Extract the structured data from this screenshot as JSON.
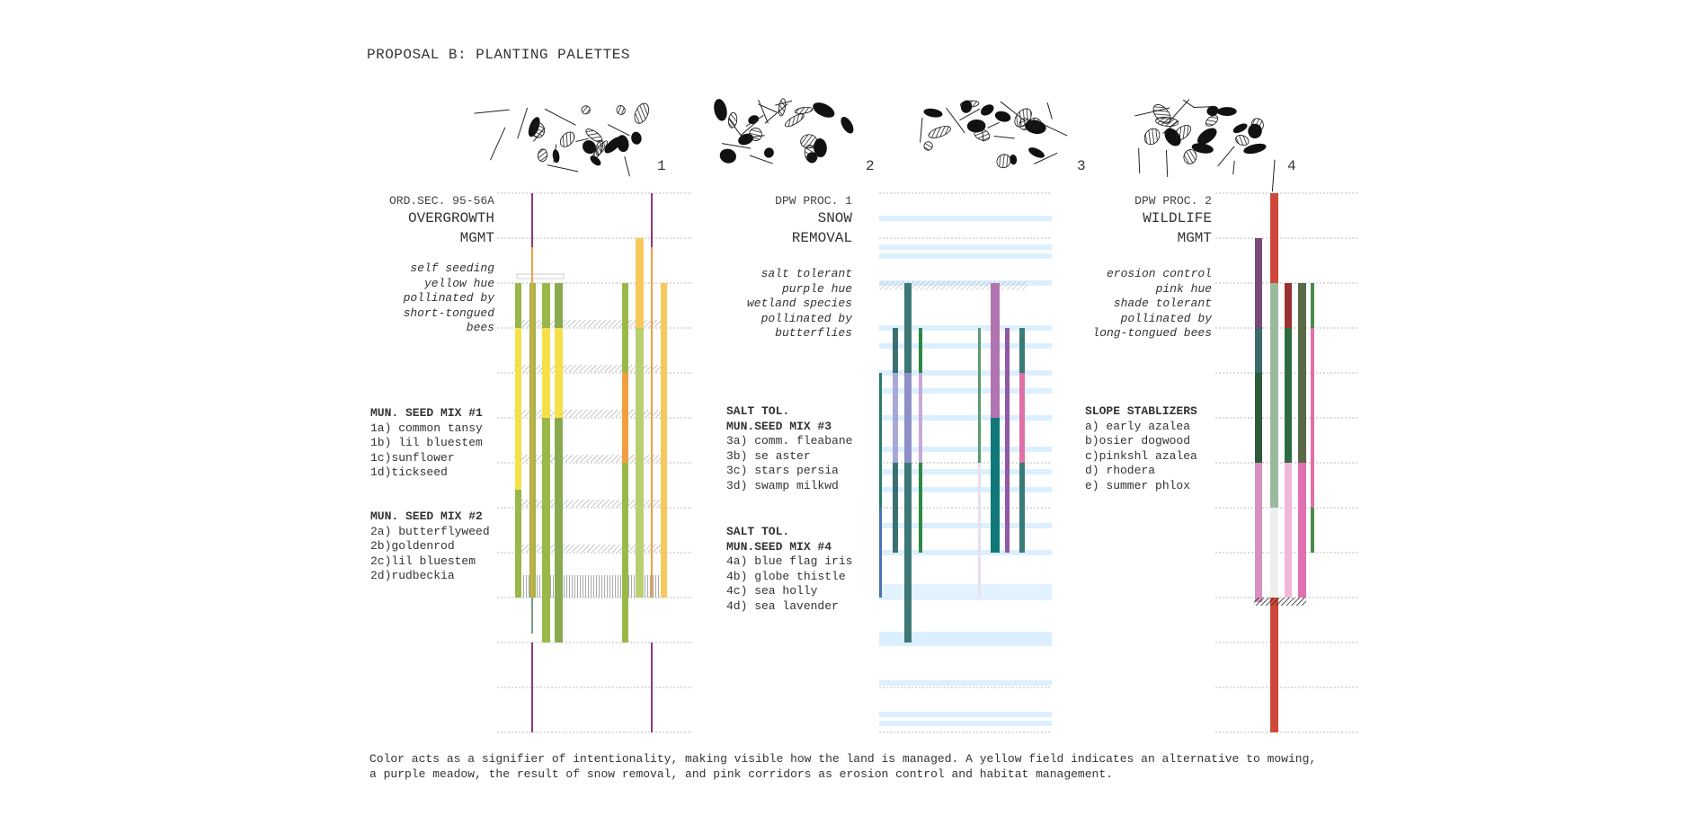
{
  "title": "PROPOSAL B: PLANTING PALETTES",
  "palette_numbers": [
    "1",
    "2",
    "3",
    "4"
  ],
  "sections": [
    {
      "code": "ORD.SEC. 95-56A",
      "name_lines": [
        "OVERGROWTH",
        "MGMT"
      ],
      "traits": [
        "self seeding",
        "yellow hue",
        "pollinated by",
        "short-tongued",
        "bees"
      ]
    },
    {
      "code": "DPW PROC. 1",
      "name_lines": [
        "SNOW",
        "REMOVAL"
      ],
      "traits": [
        "salt tolerant",
        "purple hue",
        "wetland species",
        "pollinated by",
        "butterflies"
      ]
    },
    {
      "code": "DPW PROC. 2",
      "name_lines": [
        "WILDLIFE",
        "MGMT"
      ],
      "traits": [
        "erosion control",
        "pink hue",
        "shade tolerant",
        "pollinated by",
        "long-tongued bees"
      ]
    }
  ],
  "seed_mixes": [
    {
      "heading": [
        "MUN. SEED MIX #1"
      ],
      "items": [
        "1a) common tansy",
        "1b) lil bluestem",
        "1c)sunflower",
        "1d)tickseed"
      ]
    },
    {
      "heading": [
        "MUN. SEED MIX #2"
      ],
      "items": [
        "2a) butterflyweed",
        "2b)goldenrod",
        "2c)lil bluestem",
        "2d)rudbeckia"
      ]
    },
    {
      "heading": [
        "SALT TOL.",
        "MUN.SEED MIX #3"
      ],
      "items": [
        "3a) comm. fleabane",
        "3b) se aster",
        "3c) stars persia",
        "3d) swamp milkwd"
      ]
    },
    {
      "heading": [
        "SALT TOL.",
        "MUN.SEED MIX #4"
      ],
      "items": [
        "4a) blue flag iris",
        "4b) globe thistle",
        "4c) sea holly",
        "4d) sea lavender"
      ]
    },
    {
      "heading": [
        "SLOPE STABLIZERS"
      ],
      "items": [
        "a) early azalea",
        "b)osier dogwood",
        "c)pinkshl azalea",
        "d) rhodera",
        "e) summer phlox"
      ]
    }
  ],
  "caption": [
    "Color acts as a signifier of intentionality, making visible how the land is managed. A yellow field indicates an alternative to mowing,",
    "a purple meadow, the result of snow removal, and pink corridors as erosion control and habitat management."
  ],
  "colors": {
    "yellow_green": "#9ab84a",
    "yellow": "#f6e04a",
    "orange": "#f0a040",
    "gold": "#f7c85a",
    "purple_line": "#8a3a78",
    "teal": "#3e7876",
    "green": "#4f8a48",
    "magenta": "#b074b0",
    "pink": "#e070a8",
    "red": "#d0483a",
    "light_blue": "#dcefff"
  }
}
